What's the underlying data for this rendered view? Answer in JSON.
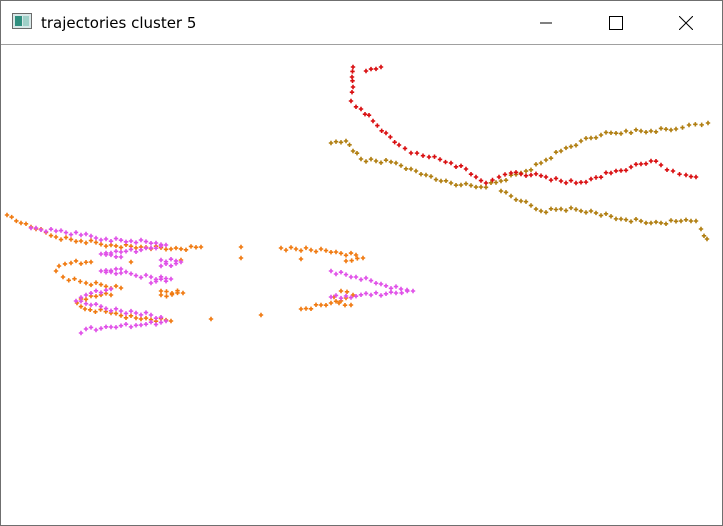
{
  "window": {
    "title": "trajectories cluster 5",
    "icons": {
      "app": "window-app-icon",
      "minimize": "minimize-icon",
      "maximize": "maximize-icon",
      "close": "close-icon"
    }
  },
  "plot": {
    "background": "#ffffff",
    "marker": "cross",
    "trajectories": [
      {
        "color": "#f07a10",
        "points": [
          [
            6,
            214
          ],
          [
            20,
            222
          ],
          [
            35,
            228
          ],
          [
            55,
            236
          ],
          [
            80,
            240
          ],
          [
            110,
            244
          ],
          [
            140,
            246
          ],
          [
            170,
            248
          ],
          [
            200,
            246
          ],
          [
            240,
            246
          ],
          [
            280,
            247
          ],
          [
            310,
            249
          ],
          [
            335,
            251
          ],
          [
            355,
            254
          ],
          [
            362,
            257
          ],
          [
            345,
            260
          ],
          [
            300,
            258
          ],
          [
            240,
            257
          ],
          [
            180,
            259
          ],
          [
            130,
            261
          ],
          [
            90,
            261
          ],
          [
            70,
            262
          ],
          [
            58,
            265
          ],
          [
            55,
            270
          ],
          [
            62,
            276
          ],
          [
            85,
            282
          ],
          [
            120,
            287
          ],
          [
            160,
            290
          ],
          [
            182,
            292
          ],
          [
            160,
            294
          ],
          [
            110,
            294
          ],
          [
            90,
            295
          ],
          [
            80,
            298
          ],
          [
            76,
            302
          ],
          [
            84,
            308
          ],
          [
            110,
            312
          ],
          [
            140,
            318
          ],
          [
            170,
            320
          ],
          [
            210,
            318
          ],
          [
            260,
            314
          ],
          [
            300,
            308
          ],
          [
            330,
            302
          ],
          [
            345,
            297
          ],
          [
            352,
            294
          ],
          [
            340,
            290
          ],
          [
            333,
            296
          ],
          [
            338,
            302
          ],
          [
            350,
            304
          ]
        ]
      },
      {
        "color": "#e050e8",
        "points": [
          [
            30,
            227
          ],
          [
            55,
            230
          ],
          [
            80,
            234
          ],
          [
            105,
            238
          ],
          [
            130,
            240
          ],
          [
            155,
            242
          ],
          [
            165,
            244
          ],
          [
            150,
            247
          ],
          [
            120,
            251
          ],
          [
            100,
            253
          ],
          [
            120,
            256
          ],
          [
            160,
            259
          ],
          [
            180,
            261
          ],
          [
            160,
            265
          ],
          [
            120,
            268
          ],
          [
            100,
            270
          ],
          [
            120,
            272
          ],
          [
            150,
            276
          ],
          [
            170,
            278
          ],
          [
            150,
            282
          ],
          [
            110,
            288
          ],
          [
            85,
            294
          ],
          [
            75,
            300
          ],
          [
            90,
            304
          ],
          [
            120,
            310
          ],
          [
            150,
            314
          ],
          [
            165,
            320
          ],
          [
            140,
            324
          ],
          [
            110,
            326
          ],
          [
            85,
            328
          ],
          [
            80,
            332
          ],
          [
            330,
            270
          ],
          [
            355,
            276
          ],
          [
            380,
            283
          ],
          [
            400,
            288
          ],
          [
            412,
            290
          ],
          [
            395,
            292
          ],
          [
            370,
            294
          ],
          [
            345,
            295
          ],
          [
            330,
            296
          ]
        ]
      },
      {
        "color": "#b07e10",
        "points": [
          [
            330,
            142
          ],
          [
            345,
            140
          ],
          [
            352,
            150
          ],
          [
            360,
            158
          ],
          [
            375,
            160
          ],
          [
            395,
            162
          ],
          [
            410,
            168
          ],
          [
            425,
            174
          ],
          [
            440,
            180
          ],
          [
            460,
            184
          ],
          [
            480,
            186
          ],
          [
            500,
            180
          ],
          [
            520,
            172
          ],
          [
            540,
            162
          ],
          [
            560,
            150
          ],
          [
            580,
            140
          ],
          [
            600,
            134
          ],
          [
            625,
            130
          ],
          [
            650,
            130
          ],
          [
            675,
            128
          ],
          [
            688,
            124
          ],
          [
            707,
            122
          ],
          [
            500,
            190
          ],
          [
            520,
            200
          ],
          [
            540,
            210
          ],
          [
            560,
            208
          ],
          [
            590,
            210
          ],
          [
            620,
            218
          ],
          [
            650,
            222
          ],
          [
            680,
            220
          ],
          [
            695,
            220
          ],
          [
            700,
            228
          ],
          [
            706,
            238
          ]
        ]
      },
      {
        "color": "#d90e10",
        "points": [
          [
            352,
            66
          ],
          [
            351,
            76
          ],
          [
            352,
            86
          ],
          [
            350,
            100
          ],
          [
            360,
            108
          ],
          [
            372,
            120
          ],
          [
            385,
            132
          ],
          [
            398,
            144
          ],
          [
            410,
            152
          ],
          [
            428,
            156
          ],
          [
            450,
            162
          ],
          [
            465,
            168
          ],
          [
            475,
            176
          ],
          [
            485,
            182
          ],
          [
            498,
            176
          ],
          [
            510,
            172
          ],
          [
            530,
            174
          ],
          [
            545,
            176
          ],
          [
            560,
            180
          ],
          [
            575,
            182
          ],
          [
            590,
            178
          ],
          [
            610,
            172
          ],
          [
            630,
            166
          ],
          [
            650,
            160
          ],
          [
            660,
            164
          ],
          [
            672,
            170
          ],
          [
            685,
            174
          ],
          [
            695,
            176
          ],
          [
            365,
            70
          ],
          [
            380,
            66
          ]
        ]
      }
    ]
  }
}
